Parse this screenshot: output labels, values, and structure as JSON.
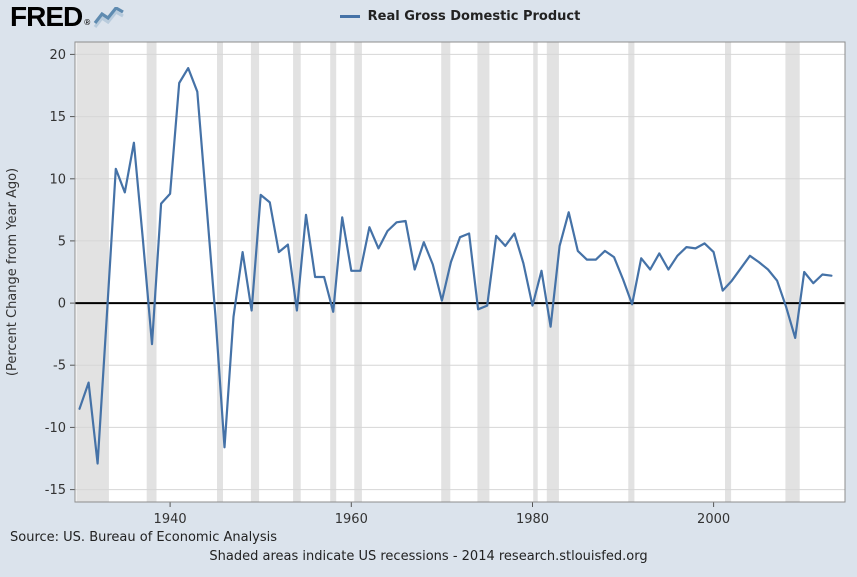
{
  "header": {
    "logo_text": "FRED",
    "logo_reg": "®"
  },
  "legend": {
    "series_label": "Real Gross Domestic Product",
    "line_color": "#4572a7"
  },
  "axes": {
    "y_title": "(Percent Change from Year Ago)"
  },
  "footer": {
    "source": "Source: US. Bureau of Economic Analysis",
    "note": "Shaded areas indicate US recessions - 2014 research.stlouisfed.org"
  },
  "chart_data": {
    "type": "line",
    "title": "Real Gross Domestic Product",
    "ylabel": "(Percent Change from Year Ago)",
    "xlabel": "",
    "legend_position": "top-center",
    "grid": "horizontal",
    "xlim": [
      1929.5,
      2014.5
    ],
    "ylim": [
      -16,
      21
    ],
    "x_ticks": [
      1940,
      1960,
      1980,
      2000
    ],
    "y_ticks": [
      -15,
      -10,
      -5,
      0,
      5,
      10,
      15,
      20
    ],
    "line_color": "#4572a7",
    "recession_band_color": "#e2e2e2",
    "grid_color": "#d6d6d6",
    "zero_line_color": "#000000",
    "x": [
      1930,
      1931,
      1932,
      1933,
      1934,
      1935,
      1936,
      1937,
      1938,
      1939,
      1940,
      1941,
      1942,
      1943,
      1944,
      1945,
      1946,
      1947,
      1948,
      1949,
      1950,
      1951,
      1952,
      1953,
      1954,
      1955,
      1956,
      1957,
      1958,
      1959,
      1960,
      1961,
      1962,
      1963,
      1964,
      1965,
      1966,
      1967,
      1968,
      1969,
      1970,
      1971,
      1972,
      1973,
      1974,
      1975,
      1976,
      1977,
      1978,
      1979,
      1980,
      1981,
      1982,
      1983,
      1984,
      1985,
      1986,
      1987,
      1988,
      1989,
      1990,
      1991,
      1992,
      1993,
      1994,
      1995,
      1996,
      1997,
      1998,
      1999,
      2000,
      2001,
      2002,
      2003,
      2004,
      2005,
      2006,
      2007,
      2008,
      2009,
      2010,
      2011,
      2012,
      2013
    ],
    "series": [
      {
        "name": "Real Gross Domestic Product",
        "values": [
          -8.5,
          -6.4,
          -12.9,
          -1.2,
          10.8,
          8.9,
          12.9,
          5.1,
          -3.3,
          8.0,
          8.8,
          17.7,
          18.9,
          17.0,
          8.0,
          -1.0,
          -11.6,
          -1.1,
          4.1,
          -0.6,
          8.7,
          8.1,
          4.1,
          4.7,
          -0.6,
          7.1,
          2.1,
          2.1,
          -0.7,
          6.9,
          2.6,
          2.6,
          6.1,
          4.4,
          5.8,
          6.5,
          6.6,
          2.7,
          4.9,
          3.1,
          0.2,
          3.3,
          5.3,
          5.6,
          -0.5,
          -0.2,
          5.4,
          4.6,
          5.6,
          3.2,
          -0.2,
          2.6,
          -1.9,
          4.6,
          7.3,
          4.2,
          3.5,
          3.5,
          4.2,
          3.7,
          1.9,
          -0.1,
          3.6,
          2.7,
          4.0,
          2.7,
          3.8,
          4.5,
          4.4,
          4.8,
          4.1,
          1.0,
          1.8,
          2.8,
          3.8,
          3.3,
          2.7,
          1.8,
          -0.3,
          -2.8,
          2.5,
          1.6,
          2.3,
          2.2
        ]
      }
    ],
    "recession_bands": [
      [
        1929.67,
        1933.25
      ],
      [
        1937.42,
        1938.5
      ],
      [
        1945.17,
        1945.83
      ],
      [
        1948.92,
        1949.83
      ],
      [
        1953.58,
        1954.42
      ],
      [
        1957.67,
        1958.33
      ],
      [
        1960.33,
        1961.17
      ],
      [
        1969.92,
        1970.92
      ],
      [
        1973.92,
        1975.25
      ],
      [
        1980.08,
        1980.58
      ],
      [
        1981.58,
        1982.92
      ],
      [
        1990.58,
        1991.25
      ],
      [
        2001.25,
        2001.92
      ],
      [
        2007.92,
        2009.5
      ]
    ]
  }
}
